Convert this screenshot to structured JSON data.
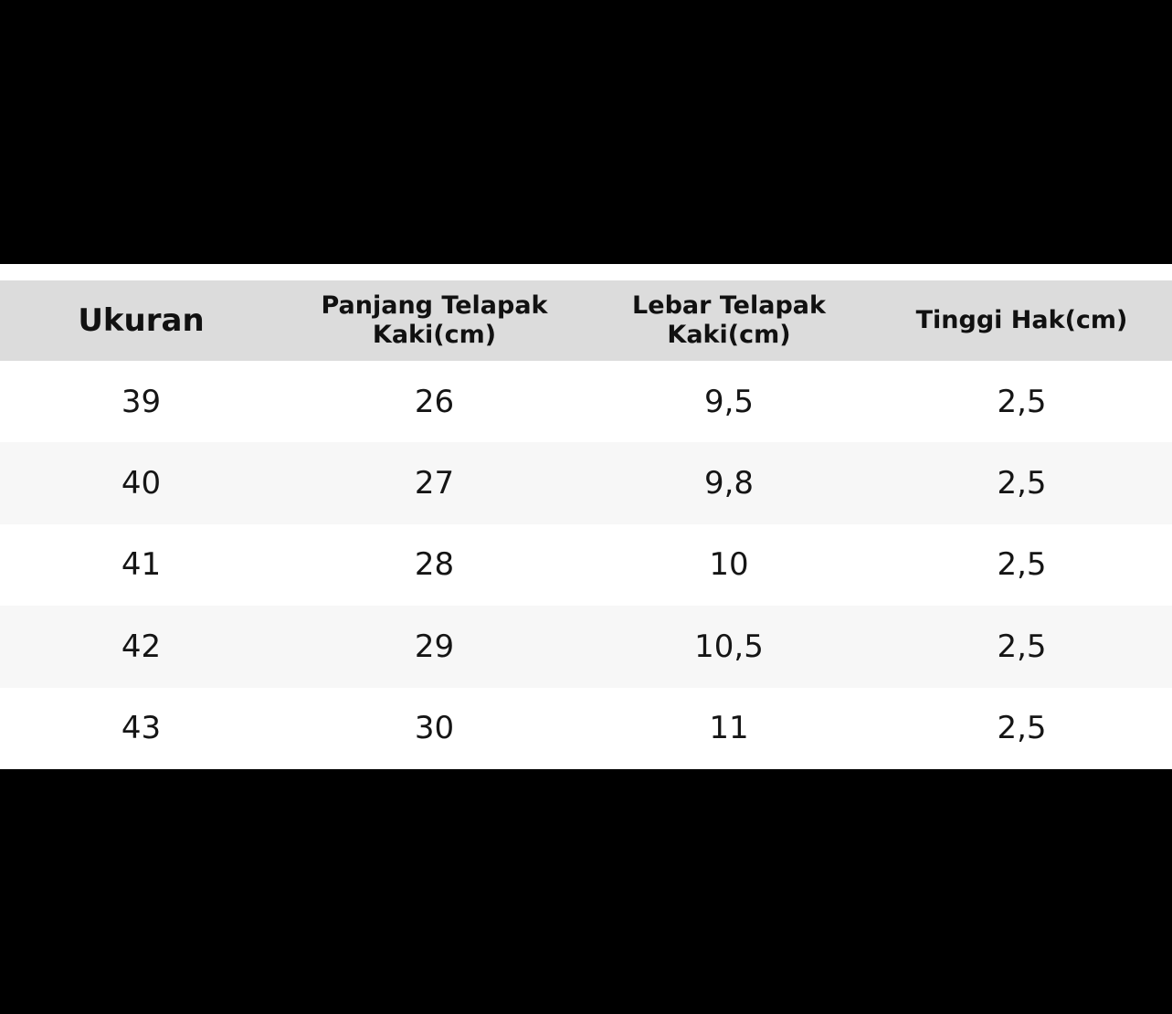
{
  "table": {
    "headers": [
      "Ukuran",
      "Panjang Telapak\nKaki(cm)",
      "Lebar Telapak\nKaki(cm)",
      "Tinggi Hak(cm)"
    ],
    "rows": [
      [
        "39",
        "26",
        "9,5",
        "2,5"
      ],
      [
        "40",
        "27",
        "9,8",
        "2,5"
      ],
      [
        "41",
        "28",
        "10",
        "2,5"
      ],
      [
        "42",
        "29",
        "10,5",
        "2,5"
      ],
      [
        "43",
        "30",
        "11",
        "2,5"
      ]
    ]
  },
  "colors": {
    "background": "#000000",
    "header_bg": "#dcdcdc",
    "row_bg": "#ffffff",
    "row_alt_bg": "#f7f7f7",
    "text": "#111111"
  }
}
